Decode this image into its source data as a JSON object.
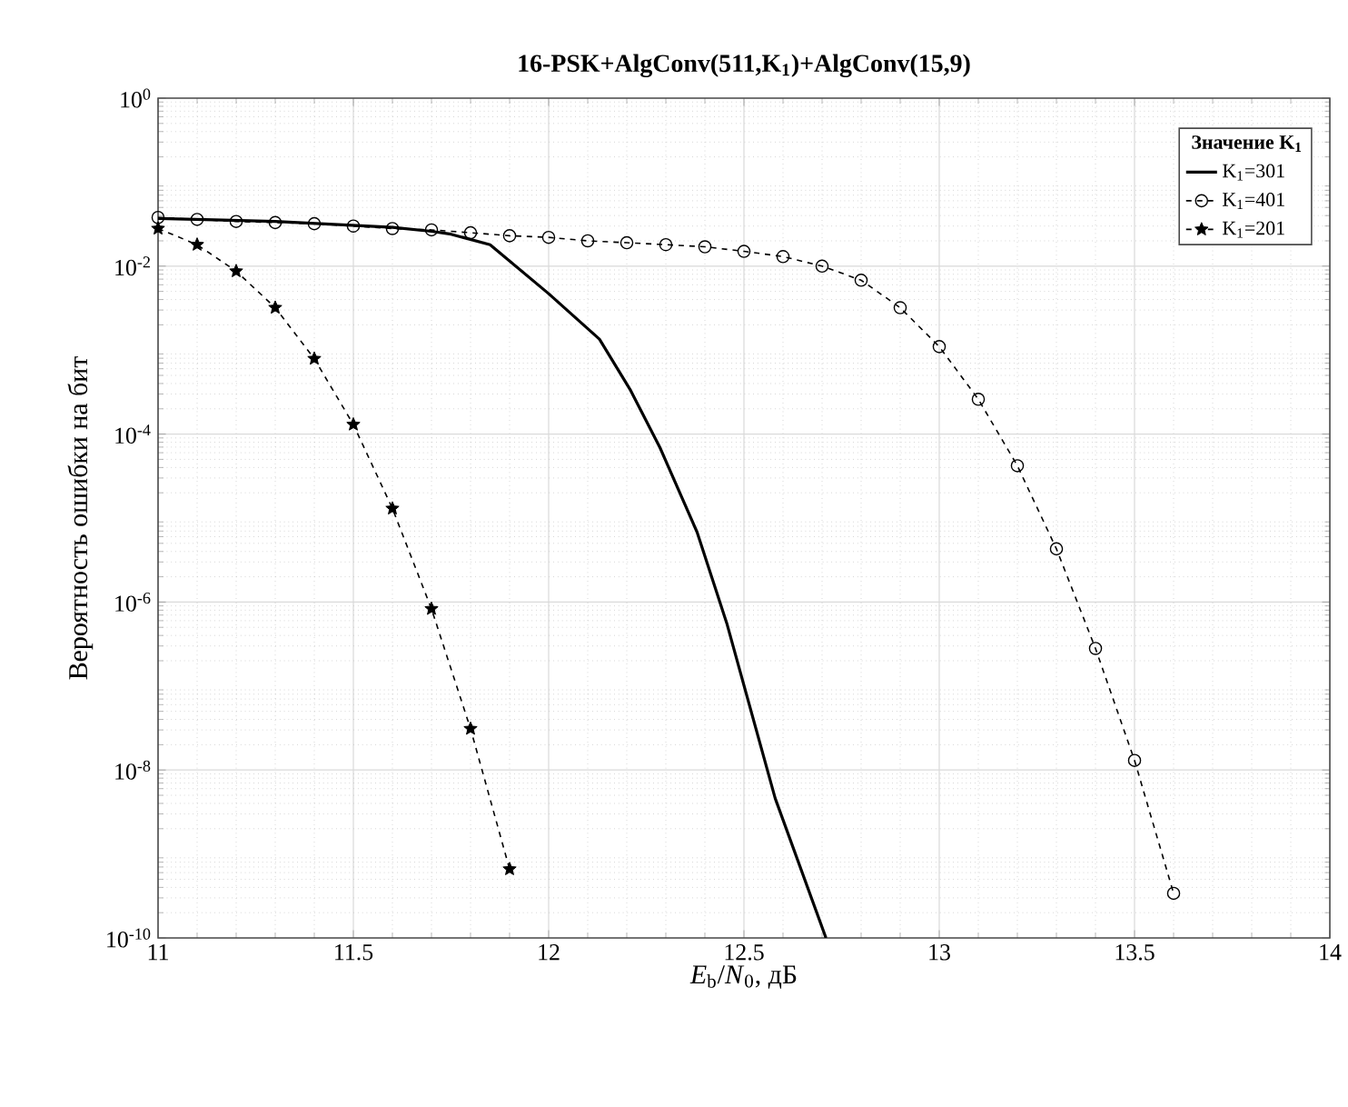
{
  "chart_data": {
    "type": "line",
    "title": "16-PSK+AlgConv(511,K$_{1}$)+AlgConv(15,9)",
    "xlabel": "*E*$_{b}$/*N*$_{0}$, дБ",
    "ylabel": "Вероятность ошибки на бит",
    "legend_title": "Значение K$_{1}$",
    "log": "y",
    "grid": true,
    "legend": "top right",
    "xlim": [
      11,
      14
    ],
    "xticks": [
      11,
      11.5,
      12,
      12.5,
      13,
      13.5,
      14
    ],
    "ylim": [
      1e-10,
      1
    ],
    "yticks": [
      {
        "value": 1e-10,
        "label": "10$^{-10}$"
      },
      {
        "value": 1e-08,
        "label": "10$^{-8}$"
      },
      {
        "value": 1e-06,
        "label": "10$^{-6}$"
      },
      {
        "value": 0.0001,
        "label": "10$^{-4}$"
      },
      {
        "value": 0.01,
        "label": "10$^{-2}$"
      },
      {
        "value": 1,
        "label": "10$^{0}$"
      }
    ],
    "series": [
      {
        "name": "K$_{1}$=301",
        "color": "#000000",
        "line_style": "solid",
        "marker": "none",
        "x": [
          11,
          11.3,
          11.6,
          11.7,
          11.75,
          11.85,
          12.0,
          12.13,
          12.21,
          12.285,
          12.38,
          12.456,
          12.58,
          12.71
        ],
        "values": [
          0.037,
          0.034,
          0.029,
          0.026,
          0.024,
          0.018,
          0.0047,
          0.00135,
          0.00033,
          6.9e-05,
          6.8e-06,
          5.6e-07,
          4.6e-09,
          1e-10
        ]
      },
      {
        "name": "K$_{1}$=401",
        "color": "#000000",
        "line_style": "dashed",
        "marker": "circle",
        "x": [
          11,
          11.1,
          11.2,
          11.3,
          11.4,
          11.5,
          11.6,
          11.7,
          11.8,
          11.9,
          12.0,
          12.1,
          12.2,
          12.3,
          12.4,
          12.5,
          12.6,
          12.7,
          12.8,
          12.9,
          13.0,
          13.1,
          13.2,
          13.3,
          13.4,
          13.5,
          13.6
        ],
        "values": [
          0.038,
          0.036,
          0.034,
          0.033,
          0.032,
          0.03,
          0.028,
          0.027,
          0.025,
          0.023,
          0.022,
          0.02,
          0.019,
          0.018,
          0.017,
          0.015,
          0.013,
          0.01,
          0.0068,
          0.0032,
          0.0011,
          0.00026,
          4.2e-05,
          4.3e-06,
          2.8e-07,
          1.3e-08,
          3.4e-10
        ]
      },
      {
        "name": "K$_{1}$=201",
        "color": "#000000",
        "line_style": "dashed",
        "marker": "star",
        "x": [
          11,
          11.1,
          11.2,
          11.3,
          11.4,
          11.5,
          11.6,
          11.7,
          11.8,
          11.9
        ],
        "values": [
          0.028,
          0.018,
          0.0087,
          0.0032,
          0.00079,
          0.00013,
          1.3e-05,
          8.3e-07,
          3.1e-08,
          6.6e-10
        ]
      }
    ]
  }
}
